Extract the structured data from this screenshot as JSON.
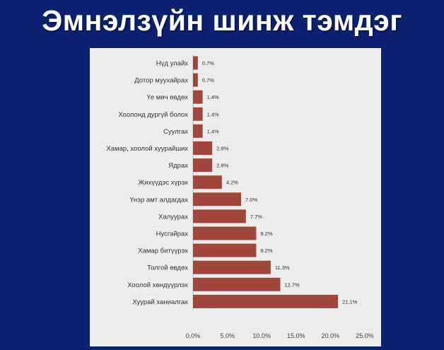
{
  "slide": {
    "title": "Эмнэлзүйн шинж тэмдэг"
  },
  "colors": {
    "background": "#0c2270",
    "panel": "#ececec",
    "bar": "#a0463a"
  },
  "chart_data": {
    "type": "bar",
    "orientation": "horizontal",
    "title": "",
    "xlabel": "",
    "ylabel": "",
    "xlim": [
      0,
      25
    ],
    "x_ticks": [
      "0.0%",
      "5.0%",
      "10.0%",
      "15.0%",
      "20.0%",
      "25.0%"
    ],
    "grid": false,
    "legend": "none",
    "categories": [
      "Нүд улайх",
      "Дотор муухайрах",
      "Үе мөч өвдөх",
      "Хоолонд дургүй болох",
      "Суулгах",
      "Хамар, хоолой хуурайших",
      "Ядрах",
      "Жихүүдэс хүрэх",
      "Үнэр амт алдагдах",
      "Халуурах",
      "Нусгайрах",
      "Хамар битүүрэх",
      "Толгой өвдөх",
      "Хоолой хөндүүрлэх",
      "Хуурай ханиалгах"
    ],
    "values": [
      0.7,
      0.7,
      1.4,
      1.4,
      1.4,
      2.8,
      2.8,
      4.2,
      7.0,
      7.7,
      9.2,
      9.2,
      11.3,
      12.7,
      21.1
    ],
    "value_labels": [
      "0.7%",
      "0.7%",
      "1.4%",
      "1.4%",
      "1.4%",
      "2.8%",
      "2.8%",
      "4.2%",
      "7.0%",
      "7.7%",
      "9.2%",
      "9.2%",
      "11.3%",
      "12.7%",
      "21.1%"
    ]
  }
}
